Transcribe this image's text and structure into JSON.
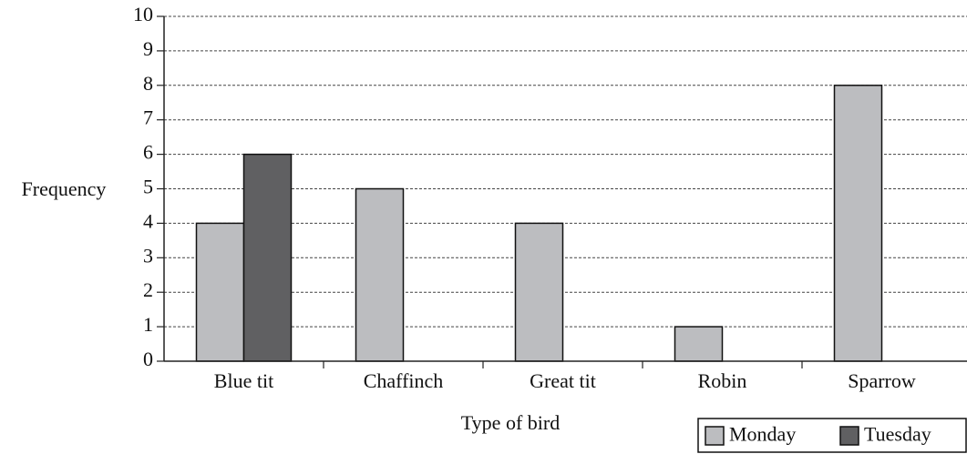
{
  "chart_data": {
    "type": "bar",
    "x_label": "Type of bird",
    "y_label": "Frequency",
    "categories": [
      "Blue tit",
      "Chaffinch",
      "Great tit",
      "Robin",
      "Sparrow"
    ],
    "series": [
      {
        "name": "Monday",
        "color": "#bcbdc0",
        "values": [
          4,
          5,
          4,
          1,
          8
        ]
      },
      {
        "name": "Tuesday",
        "color": "#606062",
        "values": [
          6,
          0,
          0,
          0,
          0
        ]
      }
    ],
    "ylim": [
      0,
      10
    ],
    "yticks": [
      0,
      1,
      2,
      3,
      4,
      5,
      6,
      7,
      8,
      9,
      10
    ],
    "grid": true,
    "legend": "lower right"
  }
}
